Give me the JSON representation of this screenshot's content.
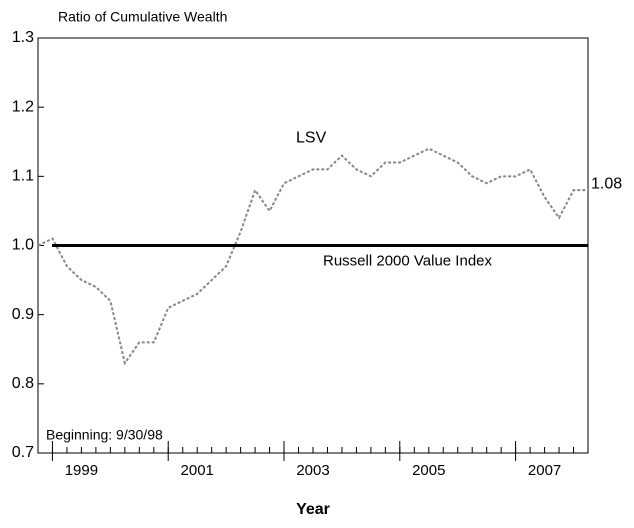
{
  "chart_data": {
    "type": "line",
    "title": "Ratio of Cumulative Wealth",
    "xlabel": "Year",
    "annotation": "Beginning: 9/30/98",
    "x": [
      1998.75,
      1999,
      1999.25,
      1999.5,
      1999.75,
      2000,
      2000.25,
      2000.5,
      2000.75,
      2001,
      2001.25,
      2001.5,
      2001.75,
      2002,
      2002.25,
      2002.5,
      2002.75,
      2003,
      2003.25,
      2003.5,
      2003.75,
      2004,
      2004.25,
      2004.5,
      2004.75,
      2005,
      2005.25,
      2005.5,
      2005.75,
      2006,
      2006.25,
      2006.5,
      2006.75,
      2007,
      2007.25,
      2007.5,
      2007.75,
      2008,
      2008.25
    ],
    "series": [
      {
        "name": "LSV",
        "color": "#888888",
        "values": [
          1.0,
          1.01,
          0.97,
          0.95,
          0.94,
          0.92,
          0.83,
          0.86,
          0.86,
          0.91,
          0.92,
          0.93,
          0.95,
          0.97,
          1.02,
          1.08,
          1.05,
          1.09,
          1.1,
          1.11,
          1.11,
          1.13,
          1.11,
          1.1,
          1.12,
          1.12,
          1.13,
          1.14,
          1.13,
          1.12,
          1.1,
          1.09,
          1.1,
          1.1,
          1.11,
          1.07,
          1.04,
          1.08,
          1.08
        ]
      }
    ],
    "reference_line": {
      "name": "Russell 2000 Value Index",
      "value": 1.0,
      "color": "#000000"
    },
    "xlim": [
      1998.75,
      2008.25
    ],
    "xticks": [
      {
        "value": 1999.5,
        "label": "1999"
      },
      {
        "value": 2001.5,
        "label": "2001"
      },
      {
        "value": 2003.5,
        "label": "2003"
      },
      {
        "value": 2005.5,
        "label": "2005"
      },
      {
        "value": 2007.5,
        "label": "2007"
      }
    ],
    "ylim": [
      0.7,
      1.3
    ],
    "yticks": [
      0.7,
      0.8,
      0.9,
      {
        "value": 1.0,
        "label": "1.0"
      },
      1.1,
      1.2,
      1.3
    ]
  }
}
